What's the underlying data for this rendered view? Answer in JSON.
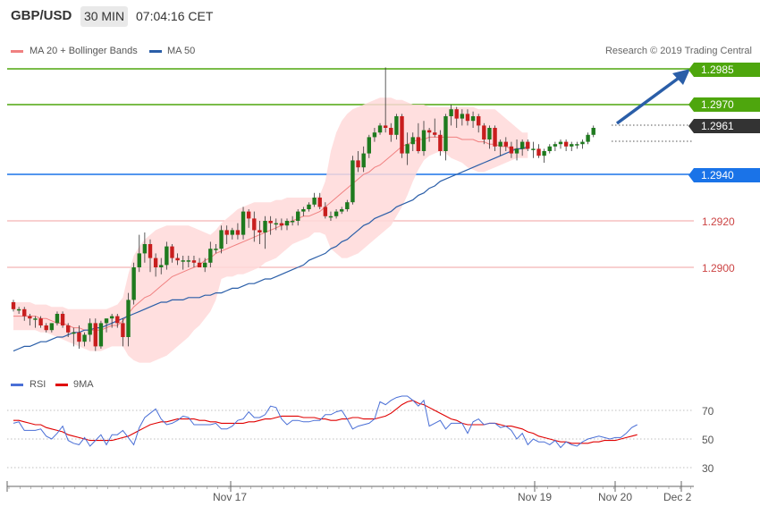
{
  "header": {
    "symbol": "GBP/USD",
    "timeframe": "30 MIN",
    "time": "07:04:16 CET"
  },
  "legend": {
    "bollinger_label": "MA 20 + Bollinger Bands",
    "ma50_label": "MA 50",
    "credit": "Research © 2019 Trading Central",
    "bollinger_color": "#f08080",
    "ma50_color": "#2a5ea8"
  },
  "levels": {
    "resistance_2": "1.2985",
    "resistance_1": "1.2970",
    "last_price": "1.2961",
    "support_1": "1.2940",
    "grid_1": "1.2920",
    "grid_2": "1.2900"
  },
  "rsi": {
    "rsi_label": "RSI",
    "ma_label": "9MA",
    "rsi_color": "#4a6fd6",
    "ma_color": "#e00000",
    "ticks": [
      "70",
      "50",
      "30"
    ]
  },
  "x_axis": {
    "labels": [
      "Nov 17",
      "Nov 19",
      "Nov 20",
      "Dec 2"
    ]
  },
  "colors": {
    "up_candle": "#1e7a1e",
    "down_candle": "#c81e1e",
    "resistance": "#4ea60d",
    "support": "#1a73e8",
    "arrow": "#2a5ea8"
  },
  "chart_data": {
    "type": "candlestick",
    "ylim": [
      1.286,
      1.3
    ],
    "candles": [
      [
        1.2885,
        1.2886,
        1.2881,
        1.2882
      ],
      [
        1.2882,
        1.2883,
        1.288,
        1.2882
      ],
      [
        1.2882,
        1.2883,
        1.2877,
        1.2879
      ],
      [
        1.2879,
        1.288,
        1.2875,
        1.2878
      ],
      [
        1.2878,
        1.2879,
        1.2874,
        1.2878
      ],
      [
        1.2878,
        1.2879,
        1.2874,
        1.2875
      ],
      [
        1.2875,
        1.2876,
        1.2872,
        1.2873
      ],
      [
        1.2873,
        1.2876,
        1.2872,
        1.2876
      ],
      [
        1.2876,
        1.2881,
        1.2875,
        1.288
      ],
      [
        1.288,
        1.2881,
        1.2874,
        1.2875
      ],
      [
        1.2875,
        1.2876,
        1.287,
        1.2872
      ],
      [
        1.2872,
        1.2874,
        1.2866,
        1.2872
      ],
      [
        1.2872,
        1.2875,
        1.2865,
        1.2868
      ],
      [
        1.2868,
        1.2872,
        1.2866,
        1.2871
      ],
      [
        1.2871,
        1.2878,
        1.2868,
        1.2876
      ],
      [
        1.2876,
        1.2878,
        1.2864,
        1.2866
      ],
      [
        1.2866,
        1.2877,
        1.2865,
        1.2876
      ],
      [
        1.2876,
        1.2878,
        1.2872,
        1.2878
      ],
      [
        1.2878,
        1.288,
        1.2874,
        1.2879
      ],
      [
        1.2879,
        1.288,
        1.2874,
        1.2876
      ],
      [
        1.2876,
        1.2878,
        1.2866,
        1.287
      ],
      [
        1.287,
        1.2889,
        1.2866,
        1.2886
      ],
      [
        1.2886,
        1.2902,
        1.2884,
        1.29
      ],
      [
        1.29,
        1.2914,
        1.2898,
        1.2906
      ],
      [
        1.2906,
        1.2915,
        1.2902,
        1.291
      ],
      [
        1.291,
        1.2912,
        1.2898,
        1.2904
      ],
      [
        1.2904,
        1.2906,
        1.2896,
        1.29
      ],
      [
        1.29,
        1.2904,
        1.2897,
        1.2901
      ],
      [
        1.2901,
        1.2911,
        1.2899,
        1.2909
      ],
      [
        1.2909,
        1.291,
        1.2902,
        1.2904
      ],
      [
        1.2904,
        1.2906,
        1.2901,
        1.2903
      ],
      [
        1.2903,
        1.2905,
        1.2899,
        1.2903
      ],
      [
        1.2903,
        1.2905,
        1.29,
        1.2903
      ],
      [
        1.2903,
        1.2905,
        1.29,
        1.2902
      ],
      [
        1.2902,
        1.2904,
        1.29,
        1.29
      ],
      [
        1.29,
        1.2904,
        1.2898,
        1.2902
      ],
      [
        1.2902,
        1.2911,
        1.29,
        1.2908
      ],
      [
        1.2908,
        1.291,
        1.2906,
        1.2908
      ],
      [
        1.2908,
        1.2918,
        1.2906,
        1.2916
      ],
      [
        1.2916,
        1.2918,
        1.291,
        1.2914
      ],
      [
        1.2914,
        1.2917,
        1.2912,
        1.2916
      ],
      [
        1.2916,
        1.2919,
        1.2912,
        1.2914
      ],
      [
        1.2914,
        1.2926,
        1.2912,
        1.2924
      ],
      [
        1.2924,
        1.2925,
        1.2917,
        1.2921
      ],
      [
        1.2921,
        1.2924,
        1.2911,
        1.2916
      ],
      [
        1.2916,
        1.292,
        1.291,
        1.2915
      ],
      [
        1.2915,
        1.2922,
        1.2908,
        1.292
      ],
      [
        1.292,
        1.2922,
        1.2914,
        1.2919
      ],
      [
        1.2919,
        1.2921,
        1.2916,
        1.2919
      ],
      [
        1.2919,
        1.2921,
        1.2916,
        1.2918
      ],
      [
        1.2918,
        1.2921,
        1.2916,
        1.292
      ],
      [
        1.292,
        1.2922,
        1.2918,
        1.292
      ],
      [
        1.292,
        1.2925,
        1.2918,
        1.2924
      ],
      [
        1.2924,
        1.2926,
        1.2922,
        1.2925
      ],
      [
        1.2925,
        1.2928,
        1.2924,
        1.2927
      ],
      [
        1.2927,
        1.2932,
        1.2926,
        1.293
      ],
      [
        1.293,
        1.2932,
        1.2925,
        1.2926
      ],
      [
        1.2926,
        1.2928,
        1.2921,
        1.2922
      ],
      [
        1.2922,
        1.2924,
        1.292,
        1.2922
      ],
      [
        1.2922,
        1.2925,
        1.2921,
        1.2924
      ],
      [
        1.2924,
        1.2926,
        1.2923,
        1.2925
      ],
      [
        1.2925,
        1.2929,
        1.2924,
        1.2928
      ],
      [
        1.2928,
        1.2948,
        1.2927,
        1.2946
      ],
      [
        1.2946,
        1.295,
        1.2941,
        1.2943
      ],
      [
        1.2943,
        1.2952,
        1.2941,
        1.2949
      ],
      [
        1.2949,
        1.2957,
        1.2947,
        1.2956
      ],
      [
        1.2956,
        1.296,
        1.2954,
        1.2958
      ],
      [
        1.2958,
        1.2962,
        1.2957,
        1.2961
      ],
      [
        1.2961,
        1.2986,
        1.2958,
        1.296
      ],
      [
        1.296,
        1.2962,
        1.2954,
        1.2957
      ],
      [
        1.2957,
        1.2966,
        1.2955,
        1.2965
      ],
      [
        1.2965,
        1.2966,
        1.2947,
        1.2949
      ],
      [
        1.2949,
        1.2958,
        1.2944,
        1.2953
      ],
      [
        1.2953,
        1.2958,
        1.295,
        1.2956
      ],
      [
        1.2956,
        1.2962,
        1.2949,
        1.295
      ],
      [
        1.295,
        1.2963,
        1.2948,
        1.2959
      ],
      [
        1.2959,
        1.296,
        1.2954,
        1.2958
      ],
      [
        1.2958,
        1.2964,
        1.2956,
        1.2957
      ],
      [
        1.2957,
        1.2959,
        1.2948,
        1.295
      ],
      [
        1.295,
        1.2966,
        1.2946,
        1.2965
      ],
      [
        1.2965,
        1.297,
        1.2961,
        1.2968
      ],
      [
        1.2968,
        1.2969,
        1.296,
        1.2964
      ],
      [
        1.2964,
        1.2968,
        1.2961,
        1.2966
      ],
      [
        1.2966,
        1.2968,
        1.2961,
        1.2963
      ],
      [
        1.2963,
        1.2967,
        1.296,
        1.2965
      ],
      [
        1.2965,
        1.2966,
        1.2958,
        1.2961
      ],
      [
        1.2961,
        1.2962,
        1.2953,
        1.2955
      ],
      [
        1.2955,
        1.2961,
        1.2951,
        1.296
      ],
      [
        1.296,
        1.2961,
        1.295,
        1.2952
      ],
      [
        1.2952,
        1.2955,
        1.2948,
        1.2954
      ],
      [
        1.2954,
        1.2956,
        1.295,
        1.2952
      ],
      [
        1.2952,
        1.2954,
        1.2947,
        1.2949
      ],
      [
        1.2949,
        1.2955,
        1.2946,
        1.2951
      ],
      [
        1.2951,
        1.2955,
        1.2948,
        1.2954
      ],
      [
        1.2954,
        1.2955,
        1.295,
        1.2951
      ],
      [
        1.2951,
        1.2954,
        1.2947,
        1.2951
      ],
      [
        1.2951,
        1.2953,
        1.2947,
        1.2948
      ],
      [
        1.2948,
        1.2951,
        1.2945,
        1.295
      ],
      [
        1.295,
        1.2953,
        1.2949,
        1.2952
      ],
      [
        1.2952,
        1.2954,
        1.295,
        1.2953
      ],
      [
        1.2953,
        1.2955,
        1.2951,
        1.2954
      ],
      [
        1.2954,
        1.2955,
        1.295,
        1.2952
      ],
      [
        1.2952,
        1.2954,
        1.295,
        1.2953
      ],
      [
        1.2953,
        1.2954,
        1.2951,
        1.2953
      ],
      [
        1.2953,
        1.2955,
        1.2951,
        1.2954
      ],
      [
        1.2954,
        1.2958,
        1.2953,
        1.2957
      ],
      [
        1.2957,
        1.2961,
        1.2956,
        1.296
      ]
    ],
    "ma20": [
      [
        1.2879,
        1.2879,
        1.2879,
        1.2879,
        1.2879,
        1.2878,
        1.2878,
        1.2877,
        1.2876,
        1.2876,
        1.2875,
        1.2874,
        1.2874,
        1.2873,
        1.2873,
        1.2873,
        1.2873,
        1.2874,
        1.2875,
        1.2875
      ],
      [
        1.2877,
        1.288,
        1.2883,
        1.2885,
        1.2887,
        1.2888,
        1.289,
        1.2892,
        1.2894,
        1.2896,
        1.2897,
        1.2898,
        1.2899,
        1.29,
        1.2901,
        1.2903,
        1.2904,
        1.2906,
        1.2907,
        1.2908
      ],
      [
        1.2909,
        1.291,
        1.2911,
        1.2912,
        1.2913,
        1.2914,
        1.2915,
        1.2916,
        1.2917,
        1.2918,
        1.2919,
        1.292,
        1.2921,
        1.2922,
        1.2922,
        1.2923,
        1.2924,
        1.2926,
        1.2928,
        1.293
      ],
      [
        1.2932,
        1.2934,
        1.2936,
        1.2938,
        1.294,
        1.2941,
        1.2943,
        1.2944,
        1.2946,
        1.2948,
        1.295,
        1.2952,
        1.2953,
        1.2954,
        1.2955,
        1.2955,
        1.2956,
        1.2956,
        1.2956,
        1.2956
      ],
      [
        1.2956,
        1.2956,
        1.2955,
        1.2955,
        1.2955,
        1.2954,
        1.2954,
        1.2953,
        1.2953,
        1.2952,
        1.2952,
        1.2951,
        1.2951,
        1.2951,
        1.2951
      ]
    ],
    "ma50": [
      [
        1.2864,
        1.2865,
        1.2866,
        1.2866,
        1.2867,
        1.2868,
        1.2868,
        1.2869,
        1.287,
        1.287,
        1.2871,
        1.2872,
        1.2872,
        1.2873,
        1.2873,
        1.2874,
        1.2874,
        1.2875,
        1.2876,
        1.2877
      ],
      [
        1.2878,
        1.2879,
        1.288,
        1.2881,
        1.2882,
        1.2883,
        1.2884,
        1.2885,
        1.2885,
        1.2886,
        1.2886,
        1.2886,
        1.2887,
        1.2887,
        1.2887,
        1.2888,
        1.2888,
        1.2889,
        1.2889,
        1.289
      ],
      [
        1.2891,
        1.2891,
        1.2892,
        1.2893,
        1.2893,
        1.2894,
        1.2895,
        1.2895,
        1.2896,
        1.2897,
        1.2898,
        1.2899,
        1.29,
        1.2901,
        1.2903,
        1.2904,
        1.2905,
        1.2906,
        1.2908,
        1.2909
      ],
      [
        1.2911,
        1.2912,
        1.2914,
        1.2916,
        1.2918,
        1.2919,
        1.2921,
        1.2922,
        1.2923,
        1.2924,
        1.2926,
        1.2927,
        1.2928,
        1.2929,
        1.2931,
        1.2932,
        1.2934,
        1.2935,
        1.2937,
        1.2938
      ],
      [
        1.2939,
        1.294,
        1.2941,
        1.2942,
        1.2943,
        1.2944,
        1.2945,
        1.2946,
        1.2947,
        1.2948,
        1.2949,
        1.295,
        1.2951,
        1.2951,
        1.2952
      ]
    ],
    "bb_upper": [
      [
        1.2885,
        1.2885,
        1.2885,
        1.2885,
        1.2884,
        1.2884,
        1.2884,
        1.2883,
        1.2883,
        1.2883,
        1.2882,
        1.2882,
        1.2882,
        1.2882,
        1.2882,
        1.2882,
        1.2882,
        1.2882,
        1.2883,
        1.2884
      ],
      [
        1.2887,
        1.2897,
        1.2905,
        1.2909,
        1.2912,
        1.2914,
        1.2916,
        1.2917,
        1.2918,
        1.2918,
        1.2918,
        1.2918,
        1.2918,
        1.2917,
        1.2916,
        1.2915,
        1.2914,
        1.2916,
        1.2919,
        1.2921
      ],
      [
        1.2923,
        1.2925,
        1.2926,
        1.2927,
        1.2928,
        1.2928,
        1.2928,
        1.2928,
        1.2929,
        1.2929,
        1.293,
        1.293,
        1.293,
        1.293,
        1.293,
        1.293,
        1.2931,
        1.2937,
        1.295,
        1.2958
      ],
      [
        1.2963,
        1.2966,
        1.2968,
        1.2969,
        1.297,
        1.2971,
        1.2972,
        1.2973,
        1.2973,
        1.2973,
        1.2972,
        1.2972,
        1.2971,
        1.297,
        1.297,
        1.297,
        1.2969,
        1.2969,
        1.2969,
        1.2969
      ],
      [
        1.2969,
        1.2969,
        1.2969,
        1.2969,
        1.2969,
        1.2968,
        1.2968,
        1.2968,
        1.2968,
        1.2966,
        1.2964,
        1.2962,
        1.296,
        1.2958,
        1.2958
      ]
    ],
    "bb_lower": [
      [
        1.2873,
        1.2873,
        1.2873,
        1.2873,
        1.2873,
        1.2872,
        1.2872,
        1.2871,
        1.287,
        1.2869,
        1.2868,
        1.2867,
        1.2866,
        1.2865,
        1.2864,
        1.2864,
        1.2864,
        1.2865,
        1.2866,
        1.2866
      ],
      [
        1.2866,
        1.2862,
        1.286,
        1.2859,
        1.2859,
        1.2859,
        1.286,
        1.2861,
        1.2862,
        1.2864,
        1.2866,
        1.2868,
        1.287,
        1.2873,
        1.2875,
        1.2878,
        1.2881,
        1.2886,
        1.2895,
        1.2896
      ],
      [
        1.2896,
        1.2897,
        1.2897,
        1.2898,
        1.2899,
        1.29,
        1.2902,
        1.2903,
        1.2904,
        1.2906,
        1.2908,
        1.291,
        1.2911,
        1.2912,
        1.2913,
        1.2915,
        1.2915,
        1.2914,
        1.2908,
        1.2906
      ],
      [
        1.2904,
        1.2904,
        1.2905,
        1.2906,
        1.2908,
        1.291,
        1.2912,
        1.2914,
        1.2916,
        1.2918,
        1.2922,
        1.2926,
        1.2931,
        1.2937,
        1.2942,
        1.2946,
        1.2948,
        1.2949,
        1.295,
        1.2949
      ],
      [
        1.2947,
        1.2946,
        1.2945,
        1.2943,
        1.2942,
        1.2941,
        1.2941,
        1.2942,
        1.2943,
        1.2944,
        1.2945,
        1.2946,
        1.2947,
        1.2947,
        1.2947
      ]
    ],
    "forecast_arrow": {
      "from": 1.2961,
      "to": 1.2985
    },
    "rsi_ylim": [
      15,
      95
    ],
    "rsi_values": [
      [
        61,
        62,
        56,
        56,
        56,
        57,
        52,
        50,
        54,
        59,
        49,
        47,
        46,
        51,
        45,
        49,
        53,
        46,
        53,
        53
      ],
      [
        56,
        51,
        46,
        58,
        65,
        68,
        71,
        64,
        60,
        61,
        63,
        66,
        65,
        60,
        60,
        60,
        60,
        61,
        57,
        57
      ],
      [
        59,
        63,
        64,
        69,
        65,
        65,
        67,
        73,
        72,
        64,
        60,
        63,
        63,
        62,
        62,
        63,
        63,
        67,
        67,
        69
      ],
      [
        70,
        64,
        57,
        59,
        60,
        61,
        64,
        76,
        74,
        77,
        79,
        80,
        80,
        77,
        73,
        77,
        59,
        61,
        63,
        57
      ],
      [
        61,
        61,
        61,
        54,
        62,
        64,
        60,
        61,
        61,
        58,
        59,
        56,
        50,
        54,
        46,
        50,
        48,
        48,
        46,
        49
      ],
      [
        44,
        48,
        46,
        45,
        48,
        50,
        51,
        52,
        51,
        50,
        51,
        51,
        54,
        58,
        60
      ]
    ],
    "rsi_ma": [
      [
        63,
        63,
        62,
        61,
        60,
        60,
        58,
        57,
        56,
        55,
        53,
        52,
        51,
        50,
        49,
        49,
        49,
        49,
        49,
        50
      ],
      [
        51,
        52,
        54,
        56,
        58,
        60,
        61,
        62,
        62,
        63,
        64,
        64,
        64,
        64,
        63,
        63,
        62,
        62,
        61,
        61
      ],
      [
        61,
        61,
        61,
        62,
        62,
        63,
        64,
        64,
        65,
        66,
        66,
        66,
        66,
        65,
        65,
        65,
        64,
        64,
        63,
        63
      ],
      [
        64,
        64,
        65,
        65,
        64,
        64,
        64,
        65,
        66,
        68,
        71,
        74,
        76,
        77,
        75,
        74,
        72,
        70,
        68,
        66
      ],
      [
        64,
        63,
        61,
        60,
        60,
        60,
        60,
        61,
        61,
        60,
        59,
        59,
        58,
        57,
        55,
        54,
        52,
        51,
        50,
        49
      ],
      [
        48,
        48,
        47,
        47,
        47,
        47,
        48,
        48,
        49,
        49,
        49,
        50,
        51,
        52,
        53
      ]
    ]
  }
}
